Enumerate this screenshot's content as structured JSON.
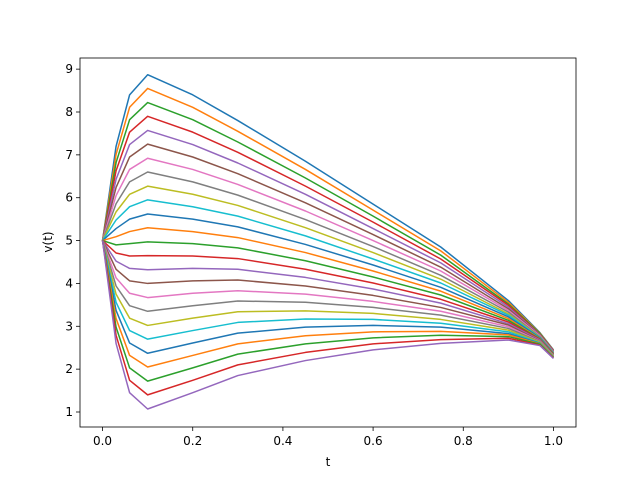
{
  "chart_data": {
    "type": "line",
    "x_label": "t",
    "y_label": "v(t)",
    "x": [
      0,
      0.03,
      0.06,
      0.1,
      0.2,
      0.3,
      0.45,
      0.6,
      0.75,
      0.9,
      0.97,
      1.0
    ],
    "xlim": [
      -0.05,
      1.05
    ],
    "ylim": [
      0.65,
      9.26
    ],
    "xticks": [
      {
        "value": 0,
        "label": "0.0"
      },
      {
        "value": 0.2,
        "label": "0.2"
      },
      {
        "value": 0.4,
        "label": "0.4"
      },
      {
        "value": 0.6,
        "label": "0.6"
      },
      {
        "value": 0.8,
        "label": "0.8"
      },
      {
        "value": 1,
        "label": "1.0"
      }
    ],
    "yticks": [
      1,
      2,
      3,
      4,
      5,
      6,
      7,
      8,
      9
    ],
    "grid": false,
    "series": [
      {
        "color": "#1f77b4",
        "values": [
          5,
          7.2,
          8.4,
          8.87,
          8.4,
          7.8,
          6.85,
          5.85,
          4.85,
          3.6,
          2.85,
          2.45
        ]
      },
      {
        "color": "#ff7f0e",
        "values": [
          5,
          7.01,
          8.11,
          8.55,
          8.11,
          7.55,
          6.66,
          5.71,
          4.76,
          3.56,
          2.84,
          2.44
        ]
      },
      {
        "color": "#2ca02c",
        "values": [
          5,
          6.82,
          7.82,
          8.22,
          7.82,
          7.3,
          6.46,
          5.57,
          4.66,
          3.52,
          2.83,
          2.43
        ]
      },
      {
        "color": "#d62728",
        "values": [
          5,
          6.63,
          7.53,
          7.9,
          7.53,
          7.06,
          6.27,
          5.43,
          4.57,
          3.49,
          2.81,
          2.43
        ]
      },
      {
        "color": "#9467bd",
        "values": [
          5,
          6.43,
          7.24,
          7.57,
          7.24,
          6.81,
          6.08,
          5.28,
          4.48,
          3.45,
          2.8,
          2.42
        ]
      },
      {
        "color": "#8c564b",
        "values": [
          5,
          6.24,
          6.95,
          7.25,
          6.95,
          6.56,
          5.88,
          5.14,
          4.38,
          3.41,
          2.79,
          2.41
        ]
      },
      {
        "color": "#e377c2",
        "values": [
          5,
          6.05,
          6.66,
          6.92,
          6.66,
          6.31,
          5.69,
          5.0,
          4.29,
          3.37,
          2.78,
          2.4
        ]
      },
      {
        "color": "#7f7f7f",
        "values": [
          5,
          5.86,
          6.37,
          6.6,
          6.37,
          6.06,
          5.49,
          4.86,
          4.19,
          3.33,
          2.76,
          2.39
        ]
      },
      {
        "color": "#bcbd22",
        "values": [
          5,
          5.67,
          6.08,
          6.27,
          6.08,
          5.82,
          5.3,
          4.72,
          4.1,
          3.29,
          2.75,
          2.38
        ]
      },
      {
        "color": "#17becf",
        "values": [
          5,
          5.48,
          5.79,
          5.95,
          5.79,
          5.57,
          5.11,
          4.57,
          4.01,
          3.26,
          2.74,
          2.38
        ]
      },
      {
        "color": "#1f77b4",
        "values": [
          5,
          5.28,
          5.5,
          5.62,
          5.5,
          5.32,
          4.91,
          4.43,
          3.91,
          3.22,
          2.73,
          2.37
        ]
      },
      {
        "color": "#ff7f0e",
        "values": [
          5,
          5.09,
          5.21,
          5.3,
          5.21,
          5.07,
          4.72,
          4.29,
          3.82,
          3.18,
          2.71,
          2.36
        ]
      },
      {
        "color": "#2ca02c",
        "values": [
          5,
          4.9,
          4.93,
          4.97,
          4.93,
          4.83,
          4.53,
          4.15,
          3.73,
          3.14,
          2.7,
          2.35
        ]
      },
      {
        "color": "#d62728",
        "values": [
          5,
          4.71,
          4.64,
          4.65,
          4.64,
          4.58,
          4.33,
          4.01,
          3.63,
          3.1,
          2.69,
          2.34
        ]
      },
      {
        "color": "#9467bd",
        "values": [
          5,
          4.52,
          4.35,
          4.32,
          4.35,
          4.33,
          4.14,
          3.87,
          3.54,
          3.06,
          2.68,
          2.33
        ]
      },
      {
        "color": "#8c564b",
        "values": [
          5,
          4.33,
          4.06,
          4.0,
          4.06,
          4.08,
          3.94,
          3.72,
          3.44,
          3.03,
          2.66,
          2.33
        ]
      },
      {
        "color": "#e377c2",
        "values": [
          5,
          4.13,
          3.77,
          3.67,
          3.77,
          3.83,
          3.75,
          3.58,
          3.35,
          2.99,
          2.65,
          2.32
        ]
      },
      {
        "color": "#7f7f7f",
        "values": [
          5,
          3.94,
          3.48,
          3.35,
          3.48,
          3.59,
          3.56,
          3.44,
          3.26,
          2.95,
          2.64,
          2.31
        ]
      },
      {
        "color": "#bcbd22",
        "values": [
          5,
          3.75,
          3.19,
          3.02,
          3.19,
          3.34,
          3.36,
          3.3,
          3.16,
          2.91,
          2.63,
          2.3
        ]
      },
      {
        "color": "#17becf",
        "values": [
          5,
          3.56,
          2.9,
          2.7,
          2.9,
          3.09,
          3.17,
          3.16,
          3.07,
          2.87,
          2.61,
          2.29
        ]
      },
      {
        "color": "#1f77b4",
        "values": [
          5,
          3.37,
          2.61,
          2.37,
          2.61,
          2.84,
          2.98,
          3.02,
          2.98,
          2.83,
          2.6,
          2.28
        ]
      },
      {
        "color": "#ff7f0e",
        "values": [
          5,
          3.18,
          2.32,
          2.05,
          2.32,
          2.59,
          2.78,
          2.87,
          2.88,
          2.8,
          2.59,
          2.28
        ]
      },
      {
        "color": "#2ca02c",
        "values": [
          5,
          2.98,
          2.03,
          1.72,
          2.03,
          2.35,
          2.59,
          2.73,
          2.79,
          2.76,
          2.58,
          2.27
        ]
      },
      {
        "color": "#d62728",
        "values": [
          5,
          2.79,
          1.74,
          1.4,
          1.74,
          2.1,
          2.39,
          2.59,
          2.69,
          2.72,
          2.56,
          2.26
        ]
      },
      {
        "color": "#9467bd",
        "values": [
          5,
          2.6,
          1.45,
          1.07,
          1.45,
          1.85,
          2.2,
          2.45,
          2.6,
          2.68,
          2.55,
          2.25
        ]
      }
    ]
  }
}
